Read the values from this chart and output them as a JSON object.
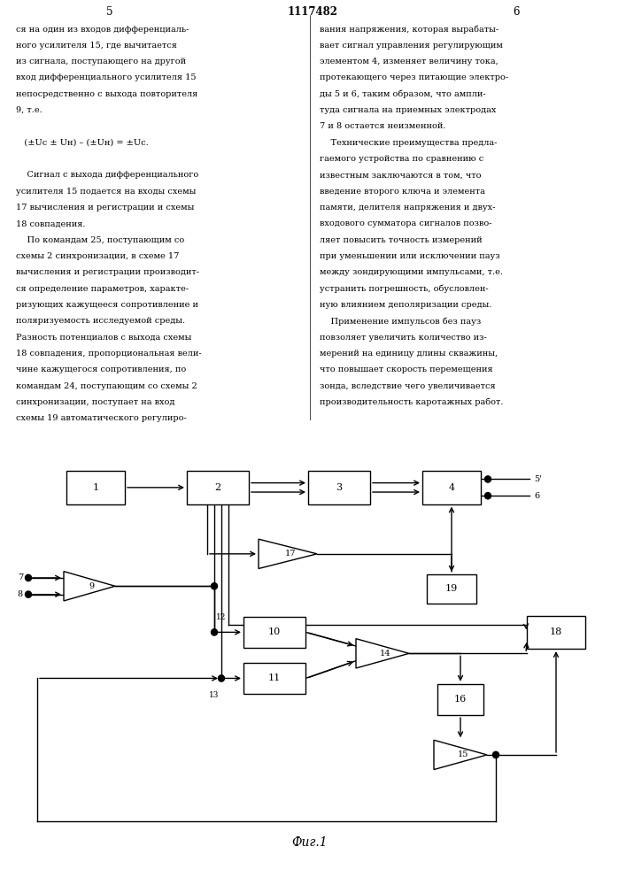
{
  "title": "1117482",
  "fig_caption": "Фиг.1",
  "background_color": "#ffffff",
  "lw": 1.0,
  "fs_label": 8,
  "fs_text": 7.0,
  "fs_header": 8.5,
  "left_text_lines": [
    "ся на один из входов дифференциаль-",
    "ного усилителя 15, где вычитается",
    "из сигнала, поступающего на другой",
    "вход дифференциального усилителя 15",
    "непосредственно с выхода повторителя",
    "9, т.е.",
    "",
    "   (±Uс ± Uн) – (±Uн) = ±Uс.",
    "",
    "    Сигнал с выхода дифференциального",
    "усилителя 15 подается на входы схемы",
    "17 вычисления и регистрации и схемы",
    "18 совпадения.",
    "    По командам 25, поступающим со",
    "схемы 2 синхронизации, в схеме 17",
    "вычисления и регистрации производит-",
    "ся определение параметров, характе-",
    "ризующих кажущееся сопротивление и",
    "поляризуемость исследуемой среды.",
    "Разность потенциалов с выхода схемы",
    "18 совпадения, пропорциональная вели-",
    "чине кажущегося сопротивления, по",
    "командам 24, поступающим со схемы 2",
    "синхронизации, поступает на вход",
    "схемы 19 автоматического регулиро-"
  ],
  "right_text_lines": [
    "вания напряжения, которая вырабаты-",
    "вает сигнал управления регулирующим",
    "элементом 4, изменяет величину тока,",
    "протекающего через питающие электро-",
    "ды 5 и 6, таким образом, что ампли-",
    "туда сигнала на приемных электродах",
    "7 и 8 остается неизменной.",
    "    Технические преимущества предла-",
    "гаемого устройства по сравнению с",
    "известным заключаются в том, что",
    "введение второго ключа и элемента",
    "памяти, делителя напряжения и двух-",
    "входового сумматора сигналов позво-",
    "ляет повысить точность измерений",
    "при уменьшении или исключении пауз",
    "между зондирующими импульсами, т.е.",
    "устранить погрешность, обусловлен-",
    "ную влиянием деполяризации среды.",
    "    Применение импульсов без пауз",
    "повзоляет увеличить количество из-",
    "мерений на единицу длины скважины,",
    "что повышает скорость перемещения",
    "зонда, вследствие чего увеличивается",
    "производительность каротажных работ."
  ]
}
